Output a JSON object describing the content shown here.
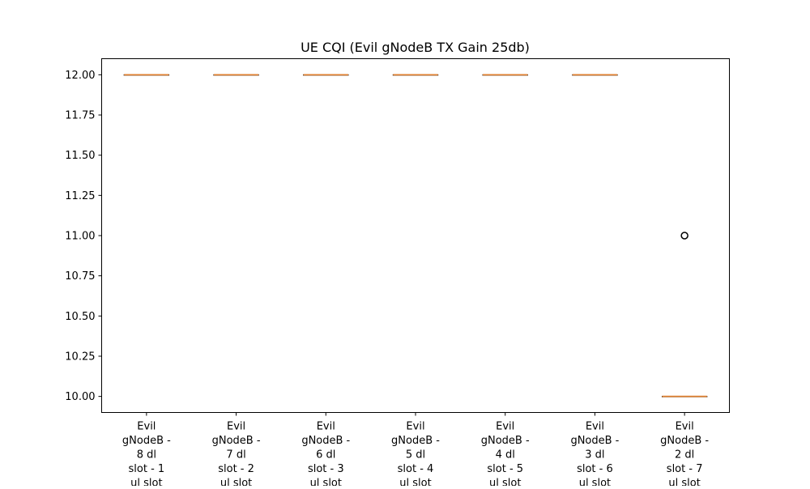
{
  "chart_data": {
    "type": "box",
    "title": "UE CQI (Evil gNodeB TX Gain 25db)",
    "xlabel": "",
    "ylabel": "",
    "ylim": [
      9.9,
      12.1
    ],
    "yticks": [
      "10.00",
      "10.25",
      "10.50",
      "10.75",
      "11.00",
      "11.25",
      "11.50",
      "11.75",
      "12.00"
    ],
    "grid": false,
    "categories": [
      [
        "Evil",
        "gNodeB -",
        "8 dl",
        "slot - 1",
        "ul slot"
      ],
      [
        "Evil",
        "gNodeB -",
        "7 dl",
        "slot - 2",
        "ul slot"
      ],
      [
        "Evil",
        "gNodeB -",
        "6 dl",
        "slot - 3",
        "ul slot"
      ],
      [
        "Evil",
        "gNodeB -",
        "5 dl",
        "slot - 4",
        "ul slot"
      ],
      [
        "Evil",
        "gNodeB -",
        "4 dl",
        "slot - 5",
        "ul slot"
      ],
      [
        "Evil",
        "gNodeB -",
        "3 dl",
        "slot - 6",
        "ul slot"
      ],
      [
        "Evil",
        "gNodeB -",
        "2 dl",
        "slot - 7",
        "ul slot"
      ]
    ],
    "boxes": [
      {
        "q1": 12,
        "median": 12,
        "q3": 12,
        "whisker_low": 12,
        "whisker_high": 12,
        "outliers": []
      },
      {
        "q1": 12,
        "median": 12,
        "q3": 12,
        "whisker_low": 12,
        "whisker_high": 12,
        "outliers": []
      },
      {
        "q1": 12,
        "median": 12,
        "q3": 12,
        "whisker_low": 12,
        "whisker_high": 12,
        "outliers": []
      },
      {
        "q1": 12,
        "median": 12,
        "q3": 12,
        "whisker_low": 12,
        "whisker_high": 12,
        "outliers": []
      },
      {
        "q1": 12,
        "median": 12,
        "q3": 12,
        "whisker_low": 12,
        "whisker_high": 12,
        "outliers": []
      },
      {
        "q1": 12,
        "median": 12,
        "q3": 12,
        "whisker_low": 12,
        "whisker_high": 12,
        "outliers": []
      },
      {
        "q1": 10,
        "median": 10,
        "q3": 10,
        "whisker_low": 10,
        "whisker_high": 10,
        "outliers": [
          11
        ]
      }
    ],
    "colors": {
      "median": "#e08030",
      "box": "#000000",
      "outlier": "#000000",
      "axes": "#000000"
    }
  }
}
